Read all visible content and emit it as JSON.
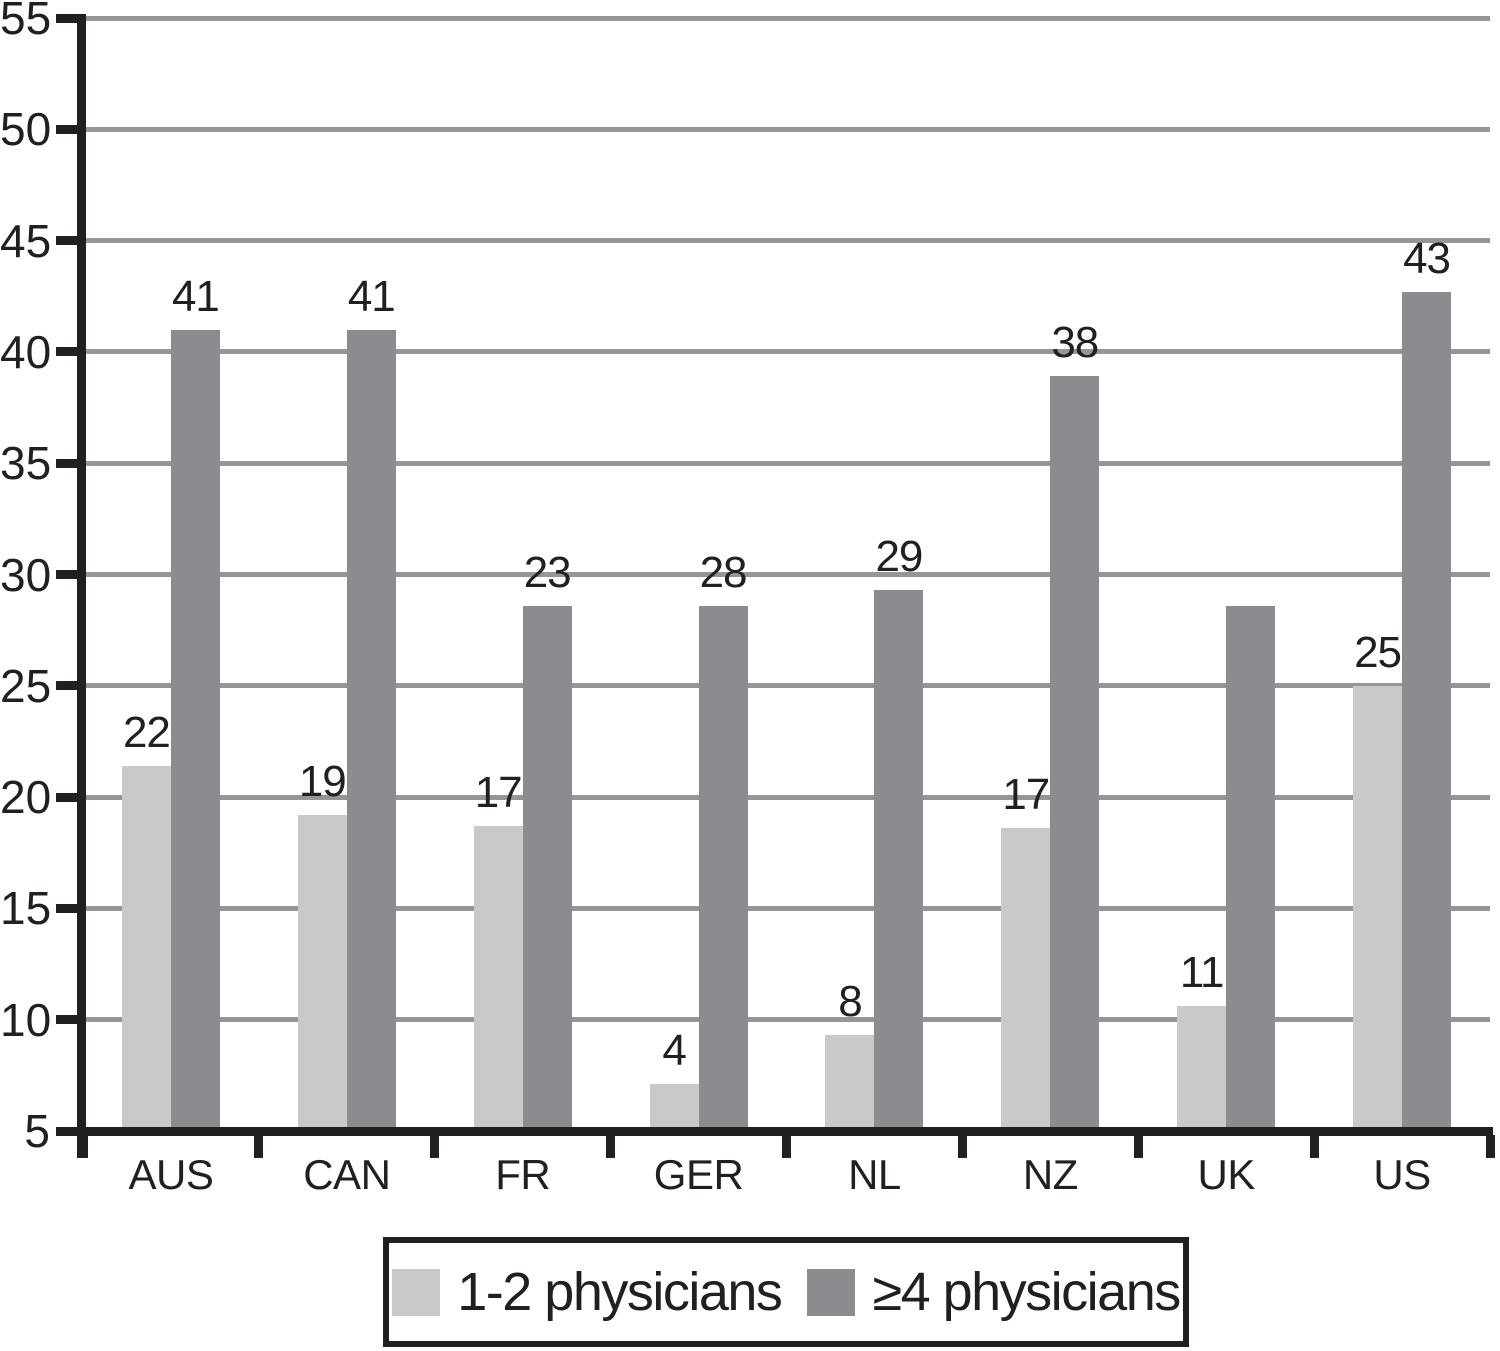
{
  "figure": {
    "background": "#ffffff",
    "axis_color": "#231f20",
    "grid_color": "#949698",
    "text_color": "#231f20"
  },
  "chart_data": {
    "type": "bar",
    "title": "",
    "xlabel": "",
    "ylabel": "",
    "categories": [
      "AUS",
      "CAN",
      "FR",
      "GER",
      "NL",
      "NZ",
      "UK",
      "US"
    ],
    "series": [
      {
        "name": "1-2 physicians",
        "color": "#c8c9cb",
        "values": [
          22,
          19,
          17,
          4,
          8,
          17,
          11,
          25
        ],
        "value_labels": [
          "22",
          "19",
          "17",
          "4",
          "8",
          "17",
          "11",
          "25"
        ],
        "drawn_values": [
          21.4,
          19.2,
          18.7,
          7.1,
          9.3,
          18.6,
          10.6,
          25.0
        ]
      },
      {
        "name": "≥4 physicians",
        "color": "#8a8c8f",
        "values": [
          41,
          41,
          23,
          28,
          29,
          38,
          null,
          43
        ],
        "value_labels": [
          "41",
          "41",
          "23",
          "28",
          "29",
          "38",
          "",
          "43"
        ],
        "drawn_values": [
          41.0,
          41.0,
          28.6,
          28.6,
          29.3,
          38.9,
          28.6,
          42.7
        ]
      }
    ],
    "ylim": [
      5,
      55
    ],
    "yticks": [
      5,
      10,
      15,
      20,
      25,
      30,
      35,
      40,
      45,
      50,
      55
    ],
    "grid": true,
    "legend_position": "bottom"
  }
}
